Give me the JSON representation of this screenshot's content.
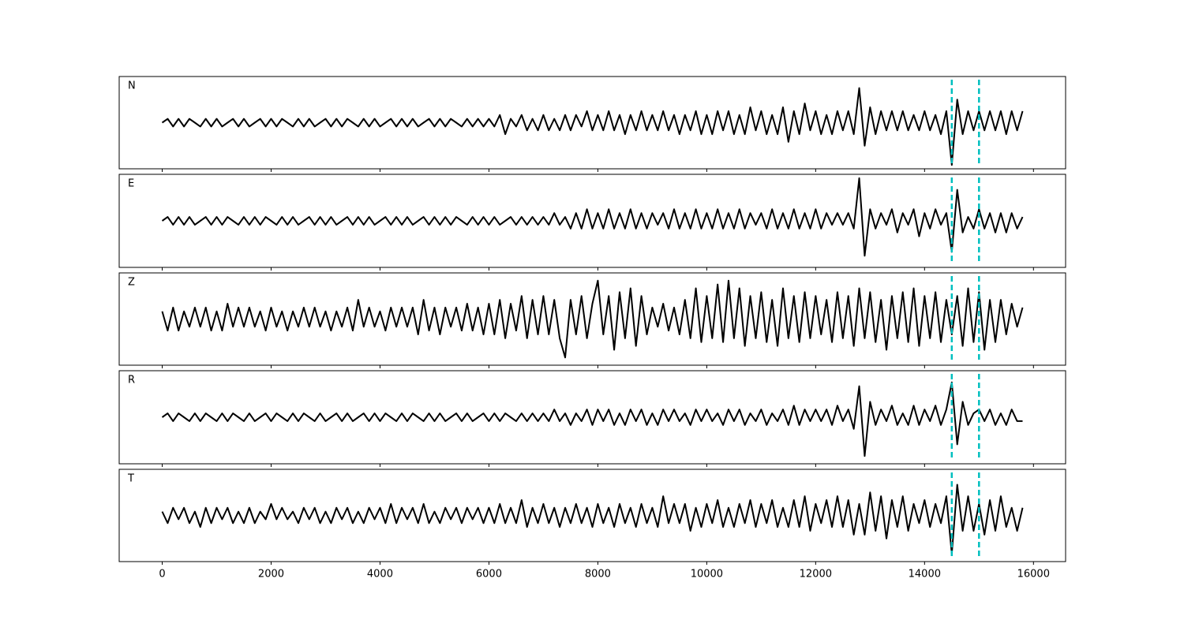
{
  "chart_data": {
    "type": "line",
    "x": [
      0,
      100,
      200,
      300,
      400,
      500,
      600,
      700,
      800,
      900,
      1000,
      1100,
      1200,
      1300,
      1400,
      1500,
      1600,
      1700,
      1800,
      1900,
      2000,
      2100,
      2200,
      2300,
      2400,
      2500,
      2600,
      2700,
      2800,
      2900,
      3000,
      3100,
      3200,
      3300,
      3400,
      3500,
      3600,
      3700,
      3800,
      3900,
      4000,
      4100,
      4200,
      4300,
      4400,
      4500,
      4600,
      4700,
      4800,
      4900,
      5000,
      5100,
      5200,
      5300,
      5400,
      5500,
      5600,
      5700,
      5800,
      5900,
      6000,
      6100,
      6200,
      6300,
      6400,
      6500,
      6600,
      6700,
      6800,
      6900,
      7000,
      7100,
      7200,
      7300,
      7400,
      7500,
      7600,
      7700,
      7800,
      7900,
      8000,
      8100,
      8200,
      8300,
      8400,
      8500,
      8600,
      8700,
      8800,
      8900,
      9000,
      9100,
      9200,
      9300,
      9400,
      9500,
      9600,
      9700,
      9800,
      9900,
      10000,
      10100,
      10200,
      10300,
      10400,
      10500,
      10600,
      10700,
      10800,
      10900,
      11000,
      11100,
      11200,
      11300,
      11400,
      11500,
      11600,
      11700,
      11800,
      11900,
      12000,
      12100,
      12200,
      12300,
      12400,
      12500,
      12600,
      12700,
      12800,
      12900,
      13000,
      13100,
      13200,
      13300,
      13400,
      13500,
      13600,
      13700,
      13800,
      13900,
      14000,
      14100,
      14200,
      14300,
      14400,
      14500,
      14600,
      14700,
      14800,
      14900,
      15000,
      15100,
      15200,
      15300,
      15400,
      15500,
      15600,
      15700,
      15800
    ],
    "series": [
      {
        "name": "N",
        "color": "#000000",
        "values": [
          0,
          1,
          -1,
          1,
          -1,
          1,
          0,
          -1,
          1,
          -1,
          1,
          -1,
          0,
          1,
          -1,
          1,
          -1,
          0,
          1,
          -1,
          1,
          -1,
          1,
          0,
          -1,
          1,
          -1,
          1,
          -1,
          0,
          1,
          -1,
          1,
          -1,
          1,
          0,
          -1,
          1,
          -1,
          1,
          -1,
          0,
          1,
          -1,
          1,
          -1,
          1,
          -1,
          0,
          1,
          -1,
          1,
          -1,
          1,
          0,
          -1,
          1,
          -1,
          1,
          -1,
          1,
          -1,
          2,
          -3,
          1,
          -1,
          2,
          -2,
          1,
          -2,
          2,
          -2,
          1,
          -2,
          2,
          -2,
          2,
          -1,
          3,
          -2,
          2,
          -2,
          3,
          -2,
          2,
          -3,
          2,
          -2,
          3,
          -2,
          2,
          -2,
          3,
          -2,
          2,
          -3,
          2,
          -2,
          3,
          -3,
          2,
          -3,
          3,
          -2,
          3,
          -3,
          2,
          -3,
          4,
          -2,
          3,
          -3,
          2,
          -3,
          4,
          -5,
          3,
          -3,
          5,
          -2,
          3,
          -3,
          2,
          -3,
          3,
          -2,
          3,
          -3,
          9,
          -6,
          4,
          -3,
          3,
          -2,
          3,
          -2,
          3,
          -2,
          2,
          -2,
          3,
          -2,
          2,
          -3,
          3,
          -11,
          6,
          -3,
          3,
          -2,
          3,
          -2,
          3,
          -2,
          3,
          -3,
          3,
          -2,
          3
        ]
      },
      {
        "name": "E",
        "color": "#000000",
        "values": [
          0,
          1,
          -1,
          1,
          -1,
          1,
          -1,
          0,
          1,
          -1,
          1,
          -1,
          1,
          0,
          -1,
          1,
          -1,
          1,
          -1,
          1,
          0,
          -1,
          1,
          -1,
          1,
          -1,
          0,
          1,
          -1,
          1,
          -1,
          1,
          -1,
          0,
          1,
          -1,
          1,
          -1,
          1,
          -1,
          0,
          1,
          -1,
          1,
          -1,
          1,
          -1,
          0,
          1,
          -1,
          1,
          -1,
          1,
          -1,
          1,
          0,
          -1,
          1,
          -1,
          1,
          -1,
          1,
          -1,
          0,
          1,
          -1,
          1,
          -1,
          1,
          -1,
          1,
          -1,
          2,
          -1,
          1,
          -2,
          2,
          -2,
          3,
          -2,
          2,
          -2,
          3,
          -2,
          2,
          -2,
          3,
          -2,
          2,
          -2,
          2,
          -1,
          2,
          -2,
          3,
          -2,
          2,
          -2,
          3,
          -2,
          2,
          -2,
          3,
          -2,
          2,
          -2,
          3,
          -2,
          2,
          -1,
          2,
          -2,
          3,
          -2,
          2,
          -2,
          3,
          -2,
          2,
          -2,
          3,
          -2,
          2,
          -1,
          2,
          -1,
          2,
          -2,
          11,
          -9,
          3,
          -2,
          2,
          -1,
          3,
          -3,
          2,
          -1,
          3,
          -4,
          2,
          -2,
          3,
          -1,
          2,
          -8,
          8,
          -3,
          1,
          -2,
          3,
          -2,
          2,
          -3,
          2,
          -3,
          2,
          -2,
          1
        ]
      },
      {
        "name": "Z",
        "color": "#000000",
        "values": [
          2,
          -3,
          3,
          -3,
          2,
          -2,
          3,
          -2,
          3,
          -3,
          2,
          -3,
          4,
          -2,
          3,
          -2,
          3,
          -2,
          2,
          -3,
          3,
          -2,
          2,
          -3,
          2,
          -2,
          3,
          -2,
          3,
          -2,
          2,
          -3,
          2,
          -2,
          3,
          -3,
          5,
          -2,
          3,
          -2,
          2,
          -3,
          3,
          -2,
          3,
          -2,
          3,
          -4,
          5,
          -3,
          3,
          -4,
          3,
          -2,
          3,
          -3,
          4,
          -3,
          3,
          -4,
          4,
          -4,
          5,
          -5,
          4,
          -3,
          6,
          -5,
          5,
          -4,
          6,
          -4,
          5,
          -5,
          -10,
          5,
          -4,
          6,
          -5,
          4,
          10,
          -4,
          6,
          -8,
          7,
          -5,
          8,
          -7,
          6,
          -4,
          3,
          -2,
          4,
          -3,
          3,
          -4,
          5,
          -5,
          8,
          -6,
          6,
          -5,
          9,
          -6,
          10,
          -5,
          8,
          -7,
          6,
          -5,
          7,
          -6,
          5,
          -7,
          8,
          -5,
          6,
          -6,
          7,
          -5,
          6,
          -4,
          5,
          -6,
          7,
          -5,
          6,
          -7,
          8,
          -5,
          7,
          -6,
          5,
          -8,
          6,
          -5,
          7,
          -6,
          8,
          -7,
          6,
          -5,
          7,
          -6,
          5,
          -4,
          6,
          -7,
          8,
          -6,
          7,
          -8,
          5,
          -6,
          5,
          -4,
          4,
          -2,
          3
        ]
      },
      {
        "name": "R",
        "color": "#000000",
        "values": [
          0,
          1,
          -1,
          1,
          0,
          -1,
          1,
          -1,
          1,
          0,
          -1,
          1,
          -1,
          1,
          0,
          -1,
          1,
          -1,
          0,
          1,
          -1,
          1,
          0,
          -1,
          1,
          -1,
          1,
          0,
          -1,
          1,
          -1,
          0,
          1,
          -1,
          1,
          -1,
          0,
          1,
          -1,
          1,
          -1,
          1,
          0,
          -1,
          1,
          -1,
          1,
          0,
          -1,
          1,
          -1,
          1,
          -1,
          0,
          1,
          -1,
          1,
          -1,
          0,
          1,
          -1,
          1,
          -1,
          1,
          0,
          -1,
          1,
          -1,
          1,
          -1,
          1,
          -1,
          2,
          -1,
          1,
          -2,
          1,
          -1,
          2,
          -2,
          2,
          -1,
          2,
          -2,
          1,
          -2,
          2,
          -1,
          2,
          -2,
          1,
          -2,
          2,
          -1,
          2,
          -1,
          1,
          -2,
          2,
          -1,
          2,
          -1,
          1,
          -2,
          2,
          -1,
          2,
          -2,
          1,
          -1,
          2,
          -2,
          1,
          -1,
          2,
          -2,
          3,
          -2,
          2,
          -1,
          2,
          -1,
          2,
          -2,
          3,
          -1,
          2,
          -3,
          8,
          -10,
          4,
          -2,
          2,
          -1,
          3,
          -2,
          1,
          -2,
          3,
          -2,
          2,
          -1,
          3,
          -2,
          2,
          9,
          -7,
          4,
          -2,
          1,
          2,
          -1,
          2,
          -2,
          1,
          -2,
          2,
          -1,
          -1
        ]
      },
      {
        "name": "T",
        "color": "#000000",
        "values": [
          1,
          -2,
          2,
          -1,
          2,
          -2,
          1,
          -3,
          2,
          -2,
          2,
          -1,
          2,
          -2,
          1,
          -2,
          2,
          -2,
          1,
          -1,
          3,
          -1,
          2,
          -1,
          1,
          -2,
          2,
          -1,
          2,
          -2,
          1,
          -2,
          2,
          -1,
          2,
          -2,
          1,
          -2,
          2,
          -1,
          2,
          -2,
          3,
          -2,
          2,
          -1,
          2,
          -2,
          3,
          -2,
          1,
          -2,
          2,
          -1,
          2,
          -2,
          2,
          -1,
          2,
          -2,
          2,
          -2,
          3,
          -2,
          2,
          -2,
          4,
          -3,
          2,
          -2,
          3,
          -2,
          2,
          -3,
          2,
          -2,
          3,
          -2,
          2,
          -3,
          3,
          -2,
          2,
          -3,
          3,
          -2,
          2,
          -3,
          3,
          -2,
          2,
          -3,
          5,
          -2,
          3,
          -2,
          3,
          -4,
          2,
          -3,
          3,
          -2,
          4,
          -3,
          2,
          -3,
          3,
          -2,
          4,
          -3,
          3,
          -2,
          4,
          -3,
          2,
          -3,
          4,
          -3,
          5,
          -4,
          3,
          -2,
          4,
          -3,
          5,
          -3,
          4,
          -5,
          3,
          -5,
          6,
          -4,
          5,
          -6,
          4,
          -3,
          5,
          -4,
          3,
          -2,
          4,
          -3,
          3,
          -2,
          5,
          -10,
          8,
          -4,
          5,
          -4,
          3,
          -5,
          4,
          -4,
          5,
          -3,
          2,
          -4,
          2
        ]
      }
    ],
    "xlim": [
      -790,
      16590
    ],
    "xticks": [
      0,
      2000,
      4000,
      6000,
      8000,
      10000,
      12000,
      14000,
      16000
    ],
    "ylim": [
      -12,
      12
    ],
    "vlines": [
      14500,
      15000
    ],
    "vline_color": "#00bfbf"
  }
}
